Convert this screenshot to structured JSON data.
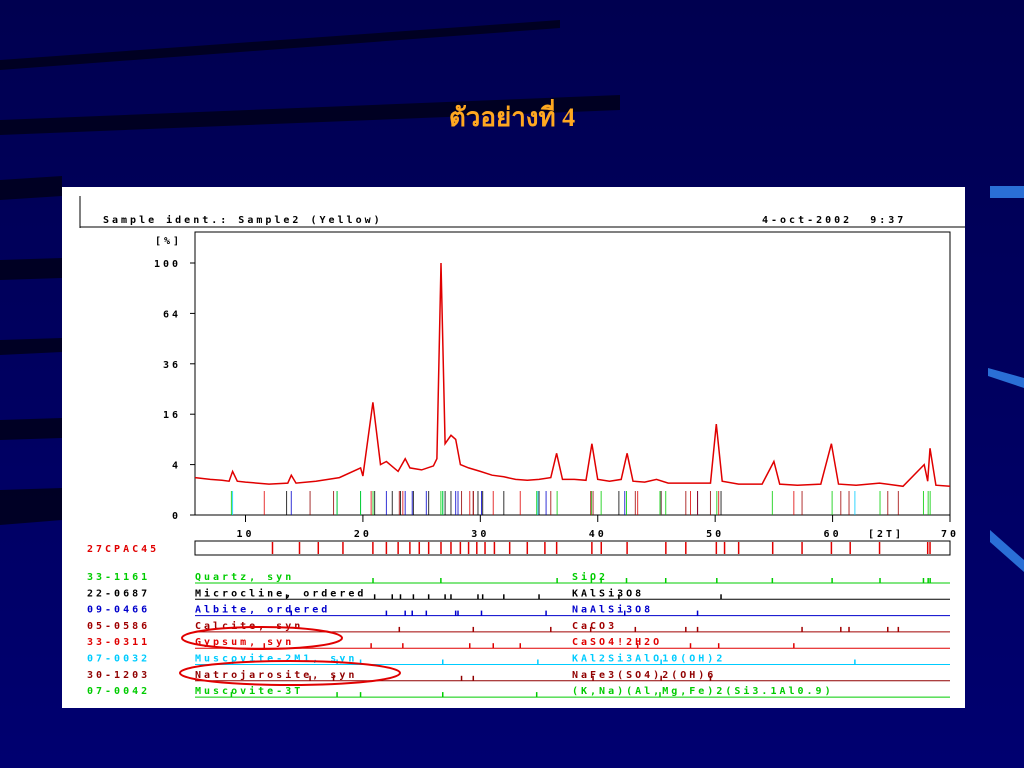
{
  "slide": {
    "title": "ตัวอย่างที่ 4"
  },
  "chart_data": {
    "type": "xrd",
    "title": "Sample ident.: Sample2 (Yellow)",
    "date": "4-oct-2002  9:37",
    "ylabel": "[%]",
    "xlabel": "[2T]",
    "xlim": [
      5.7,
      70
    ],
    "ylim": [
      0,
      100
    ],
    "yscale": "sqrt",
    "xticks": [
      10,
      20,
      30,
      40,
      50,
      60,
      70
    ],
    "yticks": [
      0,
      4,
      16,
      36,
      64,
      100
    ],
    "pattern": {
      "color": "#e00000",
      "x": [
        5.7,
        7,
        8,
        8.6,
        8.9,
        9.3,
        10,
        12,
        13.6,
        13.9,
        14.3,
        16,
        18,
        19.8,
        20,
        20.85,
        21.5,
        22,
        23,
        23.6,
        24,
        25,
        26,
        26.3,
        26.65,
        27,
        27.5,
        27.9,
        28.3,
        29,
        30,
        31,
        32,
        33,
        34,
        35,
        36,
        36.5,
        37,
        38,
        39,
        39.5,
        40,
        41,
        42,
        42.5,
        43,
        44,
        45,
        46,
        48,
        49.6,
        50.1,
        50.6,
        52,
        54,
        55,
        55.5,
        57,
        59,
        59.9,
        60.5,
        62,
        64,
        66,
        67.8,
        68.1,
        68.3,
        68.8,
        70
      ],
      "values": [
        2.2,
        2.0,
        1.9,
        1.8,
        3.0,
        1.8,
        1.7,
        1.5,
        1.6,
        2.5,
        1.6,
        1.8,
        2.2,
        3.5,
        2.4,
        20,
        4,
        4.5,
        3,
        5,
        3.5,
        3.2,
        3.8,
        5,
        100,
        8,
        10,
        9,
        4,
        3.5,
        3,
        2.5,
        2.3,
        2,
        1.9,
        2,
        2.2,
        6,
        2,
        2,
        1.9,
        8,
        2,
        1.8,
        2,
        6,
        1.8,
        1.7,
        2,
        1.6,
        1.6,
        1.6,
        13,
        1.8,
        1.5,
        1.5,
        4.5,
        1.5,
        1.4,
        1.5,
        8,
        1.5,
        1.4,
        1.6,
        1.3,
        4,
        1.8,
        7,
        1.4,
        1.3
      ]
    },
    "sample": {
      "id": "27CPAC45",
      "color": "#e00000",
      "peaks": [
        12.3,
        14.6,
        16.2,
        18.3,
        20.85,
        22,
        23,
        24,
        24.8,
        25.6,
        26.65,
        27.5,
        28.3,
        29,
        29.7,
        30.4,
        31.2,
        32.5,
        34,
        35.5,
        36.5,
        39.5,
        40.3,
        42.5,
        45.8,
        47.5,
        50.1,
        50.8,
        52,
        54.9,
        57.4,
        59.9,
        61.5,
        64,
        68.1,
        68.3
      ]
    },
    "phases": [
      {
        "code": "33-1161",
        "name": "Quartz, syn",
        "formula": "SiO2",
        "color": "#00cc00",
        "peaks": [
          20.86,
          26.64,
          36.54,
          39.46,
          40.29,
          42.45,
          45.79,
          50.14,
          54.87,
          59.96,
          64.04,
          67.74,
          68.14,
          68.31
        ]
      },
      {
        "code": "22-0687",
        "name": "Microcline, ordered",
        "formula": "KAlSi3O8",
        "color": "#000000",
        "peaks": [
          13.5,
          21,
          22.5,
          23.2,
          24.3,
          25.6,
          27,
          27.5,
          29.8,
          30.2,
          32,
          35,
          41.8,
          50.5
        ]
      },
      {
        "code": "09-0466",
        "name": "Albite, ordered",
        "formula": "NaAlSi3O8",
        "color": "#0000cc",
        "peaks": [
          13.9,
          22,
          23.6,
          24.2,
          25.4,
          27.9,
          28.1,
          30.1,
          35.6,
          42.3,
          48.5
        ]
      },
      {
        "code": "05-0586",
        "name": "Calcite, syn",
        "formula": "CaCO3",
        "color": "#a00000",
        "peaks": [
          23.1,
          29.4,
          36,
          39.4,
          43.2,
          47.5,
          48.5,
          57.4,
          60.7,
          61.4,
          64.7,
          65.6
        ]
      },
      {
        "code": "33-0311",
        "name": "Gypsum, syn",
        "formula": "CaSO4!2H2O",
        "color": "#e00000",
        "peaks": [
          11.6,
          20.7,
          23.4,
          29.1,
          31.1,
          33.4,
          43.4,
          47.9,
          50.3,
          56.7
        ]
      },
      {
        "code": "07-0032",
        "name": "Muscovite-2M1, syn",
        "formula": "KAl2Si3AlO10(OH)2",
        "color": "#00ccff",
        "peaks": [
          8.9,
          17.8,
          19.8,
          26.8,
          34.9,
          45.4,
          61.9
        ]
      },
      {
        "code": "30-1203",
        "name": "Natrojarosite, syn",
        "formula": "NaFe3(SO4)2(OH)6",
        "color": "#900000",
        "peaks": [
          15.5,
          17.5,
          28.4,
          29.4,
          39.6,
          45.4,
          49.6
        ]
      },
      {
        "code": "07-0042",
        "name": "Muscovite-3T",
        "formula": "(K,Na)(Al,Mg,Fe)2(Si3.1Al0.9)",
        "color": "#00cc00",
        "peaks": [
          8.8,
          17.8,
          19.8,
          26.8,
          34.8,
          45.3
        ]
      }
    ]
  }
}
